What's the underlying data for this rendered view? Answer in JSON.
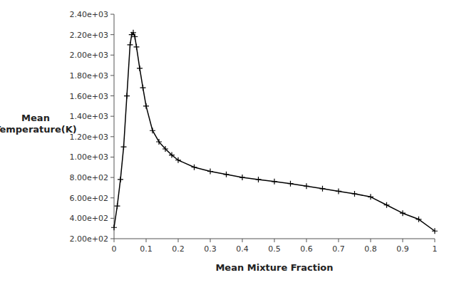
{
  "chart_data": {
    "type": "line",
    "xlabel": "Mean Mixture Fraction",
    "ylabel": "Mean\nTemperature(K)",
    "x": [
      0.0,
      0.01,
      0.02,
      0.03,
      0.04,
      0.05,
      0.055,
      0.06,
      0.065,
      0.07,
      0.08,
      0.09,
      0.1,
      0.12,
      0.14,
      0.16,
      0.18,
      0.2,
      0.25,
      0.3,
      0.35,
      0.4,
      0.45,
      0.5,
      0.55,
      0.6,
      0.65,
      0.7,
      0.75,
      0.8,
      0.85,
      0.9,
      0.95,
      1.0
    ],
    "values": [
      310,
      520,
      780,
      1100,
      1600,
      2100,
      2200,
      2220,
      2180,
      2080,
      1870,
      1680,
      1500,
      1260,
      1150,
      1080,
      1020,
      970,
      900,
      860,
      830,
      800,
      780,
      760,
      740,
      715,
      690,
      665,
      640,
      610,
      530,
      450,
      390,
      275
    ],
    "xlim": [
      0.0,
      1.0
    ],
    "ylim": [
      200,
      2400
    ],
    "xticks": [
      0,
      0.1,
      0.2,
      0.3,
      0.4,
      0.5,
      0.6,
      0.7,
      0.8,
      0.9,
      1
    ],
    "yticks": [
      {
        "value": 200,
        "label": "2.00e+02"
      },
      {
        "value": 400,
        "label": "4.00e+02"
      },
      {
        "value": 600,
        "label": "6.00e+02"
      },
      {
        "value": 800,
        "label": "8.00e+02"
      },
      {
        "value": 1000,
        "label": "1.00e+03"
      },
      {
        "value": 1200,
        "label": "1.20e+03"
      },
      {
        "value": 1400,
        "label": "1.40e+03"
      },
      {
        "value": 1600,
        "label": "1.60e+03"
      },
      {
        "value": 1800,
        "label": "1.80e+03"
      },
      {
        "value": 2000,
        "label": "2.00e+03"
      },
      {
        "value": 2200,
        "label": "2.20e+03"
      },
      {
        "value": 2400,
        "label": "2.40e+03"
      }
    ],
    "color": "#000000",
    "marker": "plus",
    "grid": false
  }
}
